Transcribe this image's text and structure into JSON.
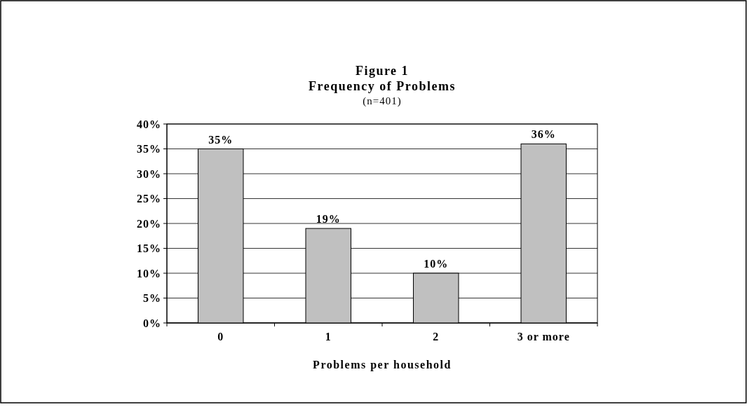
{
  "chart_data": {
    "type": "bar",
    "title": "Figure 1",
    "subtitle": "Frequency of Problems",
    "annotations": [
      "(n=401)"
    ],
    "xlabel": "Problems per household",
    "categories": [
      "0",
      "1",
      "2",
      "3 or more"
    ],
    "values": [
      35,
      19,
      10,
      36
    ],
    "color": "#c0c0c0",
    "value_labels": [
      "35%",
      "19%",
      "10%",
      "36%"
    ],
    "ylim": [
      0,
      40
    ],
    "yticks": [
      {
        "value": 0,
        "label": "0%"
      },
      {
        "value": 5,
        "label": "5%"
      },
      {
        "value": 10,
        "label": "10%"
      },
      {
        "value": 15,
        "label": "15%"
      },
      {
        "value": 20,
        "label": "20%"
      },
      {
        "value": 25,
        "label": "25%"
      },
      {
        "value": 30,
        "label": "30%"
      },
      {
        "value": 35,
        "label": "35%"
      },
      {
        "value": 40,
        "label": "40%"
      }
    ],
    "grid": "y"
  }
}
